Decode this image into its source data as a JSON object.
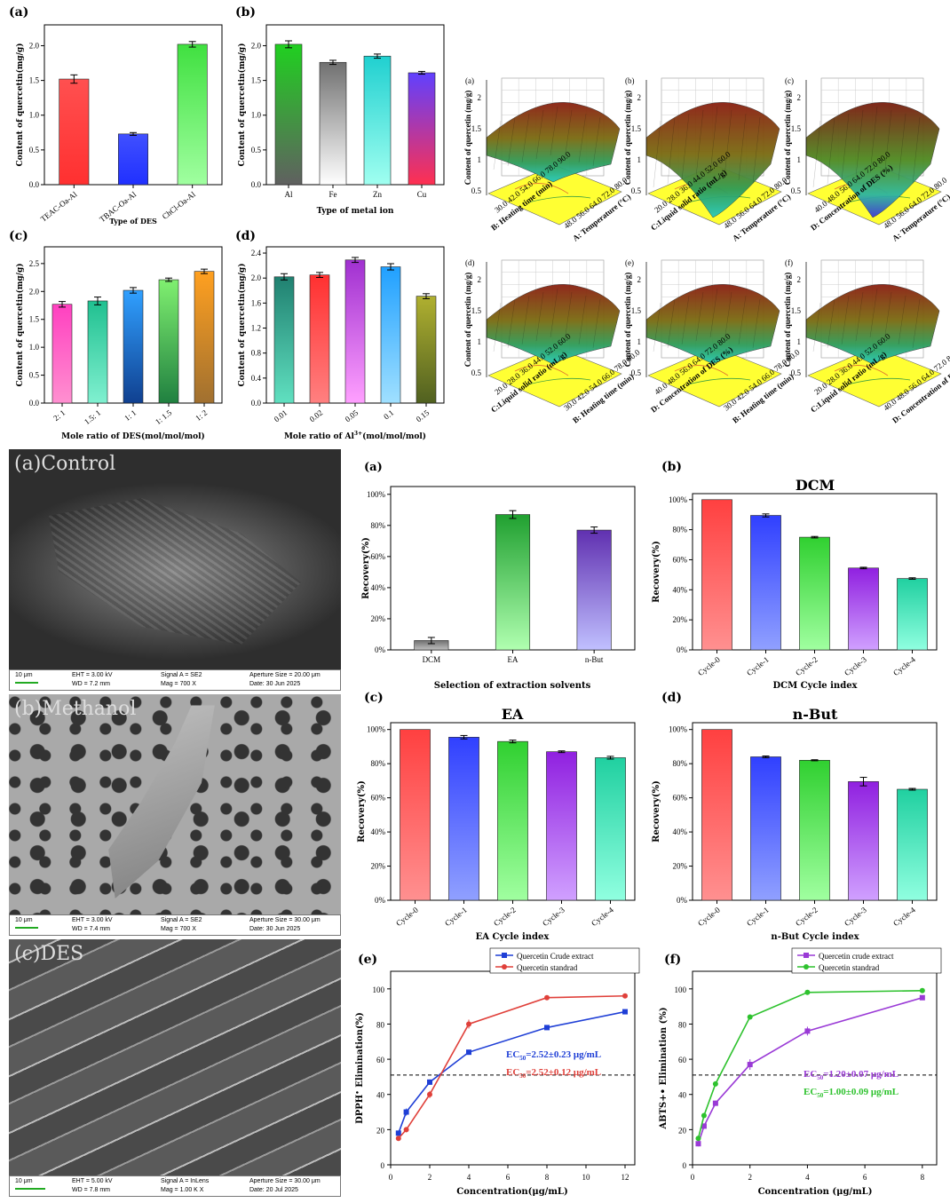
{
  "colors": {
    "red": "#ff3b3b",
    "blue": "#2b3cff",
    "green": "#3ed43e",
    "purple": "#7a2ecc",
    "teal": "#2edfb3",
    "gray": "#8a8a8a",
    "yellow": "#ffff33",
    "line_blue": "#1f3fd6",
    "line_red": "#e0403a",
    "line_purple": "#9a3ad6",
    "line_green": "#2ec22e"
  },
  "panels": {
    "a1": {
      "label": "(a)",
      "ylabel": "Content of quercetin(mg/g)",
      "xlabel": "Type of DES",
      "yticks": [
        "0.0",
        "0.5",
        "1.0",
        "1.5",
        "2.0"
      ]
    },
    "b1": {
      "label": "(b)",
      "ylabel": "Content of quercetin(mg/g)",
      "xlabel": "Type of metal ion",
      "yticks": [
        "0.0",
        "0.5",
        "1.0",
        "1.5",
        "2.0"
      ]
    },
    "c1": {
      "label": "(c)",
      "ylabel": "Content of quercetin(mg/g)",
      "xlabel": "Mole ratio of DES(mol/mol/mol)",
      "yticks": [
        "0.0",
        "0.5",
        "1.0",
        "1.5",
        "2.0",
        "2.5"
      ]
    },
    "d1": {
      "label": "(d)",
      "ylabel": "Content of quercetin(mg/g)",
      "xlabel_main": "Mole ratio of Al",
      "xlabel_sup": "3+",
      "xlabel_tail": "(mol/mol/mol)",
      "yticks": [
        "0.0",
        "0.4",
        "0.8",
        "1.2",
        "1.6",
        "2.0",
        "2.4"
      ]
    },
    "rsm": [
      {
        "label": "(a)",
        "zlabel": "Content of quercetin (mg/g)",
        "xaxis": "B: Heating time (min)",
        "yaxis": "A: Temperature (°C)",
        "xticks": "30.0 42.0 54.0 66.0 78.0 90.0",
        "yticks": "48.0 56.0 64.0 72.0 80.0"
      },
      {
        "label": "(b)",
        "zlabel": "Content of quercetin (mg/g)",
        "xaxis": "C:Liquid solid ratio (mL/g)",
        "yaxis": "A: Temperature (°C)",
        "xticks": "20.0 28.0 36.0 44.0 52.0 60.0",
        "yticks": "48.0 56.0 64.0 72.0 80.0"
      },
      {
        "label": "(c)",
        "zlabel": "Content of quercetin (mg/g)",
        "xaxis": "D: Concentration of DES (%)",
        "yaxis": "A: Temperature (°C)",
        "xticks": "40.0 48.0 56.0 64.0 72.0 80.0",
        "yticks": "48.0 56.0 64.0 72.0 80.0"
      },
      {
        "label": "(d)",
        "zlabel": "Content of quercetin (mg/g)",
        "xaxis": "C:Liquid solid ratio (mL/g)",
        "yaxis": "B: Heating time (min)",
        "xticks": "20.0 28.0 36.0 44.0 52.0 60.0",
        "yticks": "30.0 42.0 54.0 66.0 78.0 90.0"
      },
      {
        "label": "(e)",
        "zlabel": "Content of quercetin (mg/g)",
        "xaxis": "D: Concentration of DES (%)",
        "yaxis": "B: Heating time (min)",
        "xticks": "40.0 48.0 56.0 64.0 72.0 80.0",
        "yticks": "30.0 42.0 54.0 66.0 78.0 90.0"
      },
      {
        "label": "(f)",
        "zlabel": "Content of quercetin (mg/g)",
        "xaxis": "C:Liquid solid ratio (mL/g)",
        "yaxis": "D: Concentration of DES (%)",
        "xticks": "20.0 28.0 36.0 44.0 52.0 60.0",
        "yticks": "40.0 48.0 56.0 64.0 72.0 80.0"
      }
    ],
    "rsm_zticks": [
      "0.5",
      "1",
      "1.5",
      "2"
    ],
    "sem": [
      {
        "caption": "(a)Control",
        "scale": "10 μm",
        "eht": "EHT =  3.00 kV",
        "wd": "WD =  7.2 mm",
        "signal": "Signal A = SE2",
        "mag": "Mag =   700 X",
        "aperture": "Aperture Size = 20.00 μm",
        "date": "Date: 30 Jun 2025"
      },
      {
        "caption": "(b)Methanol",
        "scale": "10 μm",
        "eht": "EHT =  3.00 kV",
        "wd": "WD =  7.4 mm",
        "signal": "Signal A = SE2",
        "mag": "Mag =   700 X",
        "aperture": "Aperture Size = 30.00 μm",
        "date": "Date: 30 Jun 2025"
      },
      {
        "caption": "(c)DES",
        "scale": "10 μm",
        "eht": "EHT =  5.00 kV",
        "wd": "WD =  7.8 mm",
        "signal": "Signal A = InLens",
        "mag": "Mag =  1.00 K X",
        "aperture": "Aperture Size = 30.00 μm",
        "date": "Date: 20 Jul 2025"
      }
    ],
    "ra": {
      "label": "(a)",
      "ylabel": "Recovery(%)",
      "xlabel": "Selection of extraction solvents",
      "yticks": [
        "0%",
        "20%",
        "40%",
        "60%",
        "80%",
        "100%"
      ]
    },
    "rb": {
      "label": "(b)",
      "title": "DCM",
      "ylabel": "Recovery(%)",
      "xlabel": "DCM Cycle index",
      "yticks": [
        "0%",
        "20%",
        "40%",
        "60%",
        "80%",
        "100%"
      ]
    },
    "rc": {
      "label": "(c)",
      "title": "EA",
      "ylabel": "Recovery(%)",
      "xlabel": "EA Cycle index",
      "yticks": [
        "0%",
        "20%",
        "40%",
        "60%",
        "80%",
        "100%"
      ]
    },
    "rd": {
      "label": "(d)",
      "title": "n-But",
      "ylabel": "Recovery(%)",
      "xlabel": "n-But Cycle index",
      "yticks": [
        "0%",
        "20%",
        "40%",
        "60%",
        "80%",
        "100%"
      ]
    },
    "re": {
      "label": "(e)",
      "ylabel_pre": "DPPH",
      "ylabel_post": " Elimination(%)",
      "xlabel": "Concentration(μg/mL)",
      "legend1": "Quercetin Crude extract",
      "legend2": "Quercetin standrad",
      "ann1": "EC",
      "ann1_tail": "=2.52±0.23 μg/mL",
      "ann2": "EC",
      "ann2_tail": "=2.52±0.12 μg/mL",
      "sub": "50",
      "yticks": [
        "0",
        "20",
        "40",
        "60",
        "80",
        "100"
      ],
      "xticks": [
        "0",
        "2",
        "4",
        "6",
        "8",
        "10",
        "12"
      ]
    },
    "rf": {
      "label": "(f)",
      "ylabel": "ABTS+• Elimination (%)",
      "xlabel": "Concentration (μg/mL)",
      "legend1": "Quercetin crude extract",
      "legend2": "Quercetin standrad",
      "ann1": "EC",
      "ann1_tail": "=1.20±0.07 μg/mL",
      "ann2": "EC",
      "ann2_tail": "=1.00±0.09 μg/mL",
      "sub": "50",
      "yticks": [
        "0",
        "20",
        "40",
        "60",
        "80",
        "100"
      ],
      "xticks": [
        "0",
        "2",
        "4",
        "6",
        "8"
      ]
    }
  },
  "chart_data": [
    {
      "type": "bar",
      "categories": [
        "TEAC-Oa-Al",
        "TBAC-Oa-Al",
        "ChCl-Oa-Al"
      ],
      "values": [
        1.52,
        0.73,
        2.02
      ],
      "errors": [
        0.06,
        0.02,
        0.04
      ],
      "xlabel": "Type of DES",
      "ylabel": "Content of quercetin(mg/g)",
      "ylim": [
        0,
        2.3
      ]
    },
    {
      "type": "bar",
      "categories": [
        "Al",
        "Fe",
        "Zn",
        "Cu"
      ],
      "values": [
        2.02,
        1.76,
        1.85,
        1.61
      ],
      "errors": [
        0.05,
        0.03,
        0.03,
        0.02
      ],
      "xlabel": "Type of metal ion",
      "ylabel": "Content of quercetin(mg/g)",
      "ylim": [
        0,
        2.3
      ]
    },
    {
      "type": "bar",
      "categories": [
        "2: 1",
        "1.5: 1",
        "1: 1",
        "1: 1.5",
        "1: 2"
      ],
      "values": [
        1.77,
        1.83,
        2.02,
        2.21,
        2.36
      ],
      "errors": [
        0.05,
        0.07,
        0.05,
        0.03,
        0.04
      ],
      "xlabel": "Mole ratio of DES(mol/mol/mol)",
      "ylabel": "Content of quercetin(mg/g)",
      "ylim": [
        0,
        2.8
      ]
    },
    {
      "type": "bar",
      "categories": [
        "0.01",
        "0.02",
        "0.05",
        "0.1",
        "0.15"
      ],
      "values": [
        2.02,
        2.05,
        2.29,
        2.18,
        1.71
      ],
      "errors": [
        0.05,
        0.04,
        0.04,
        0.05,
        0.04
      ],
      "ylabel": "Content of quercetin(mg/g)",
      "ylim": [
        0,
        2.5
      ]
    },
    {
      "type": "bar",
      "categories": [
        "DCM",
        "EA",
        "n-But"
      ],
      "values": [
        6,
        87,
        77
      ],
      "errors": [
        2,
        2.5,
        2
      ],
      "xlabel": "Selection of extraction solvents",
      "ylabel": "Recovery(%)",
      "ylim": [
        0,
        100
      ]
    },
    {
      "type": "bar",
      "title": "DCM",
      "categories": [
        "Cycle-0",
        "Cycle-1",
        "Cycle-2",
        "Cycle-3",
        "Cycle-4"
      ],
      "values": [
        100,
        89.5,
        75,
        54.5,
        47.5
      ],
      "errors": [
        0,
        1,
        0.5,
        0.5,
        0.5
      ],
      "xlabel": "DCM Cycle index",
      "ylabel": "Recovery(%)",
      "ylim": [
        0,
        100
      ]
    },
    {
      "type": "bar",
      "title": "EA",
      "categories": [
        "Cycle-0",
        "Cycle-1",
        "Cycle-2",
        "Cycle-3",
        "Cycle-4"
      ],
      "values": [
        100,
        95.5,
        93,
        87,
        83.5
      ],
      "errors": [
        0,
        1,
        0.8,
        0.5,
        0.8
      ],
      "xlabel": "EA Cycle index",
      "ylabel": "Recovery(%)",
      "ylim": [
        0,
        100
      ]
    },
    {
      "type": "bar",
      "title": "n-But",
      "categories": [
        "Cycle-0",
        "Cycle-1",
        "Cycle-2",
        "Cycle-3",
        "Cycle-4"
      ],
      "values": [
        100,
        84,
        82,
        69.5,
        65
      ],
      "errors": [
        0,
        0.5,
        0.3,
        2.5,
        0.5
      ],
      "xlabel": "n-But Cycle index",
      "ylabel": "Recovery(%)",
      "ylim": [
        0,
        100
      ]
    },
    {
      "type": "line",
      "xlabel": "Concentration(μg/mL)",
      "xlim": [
        0,
        12.5
      ],
      "ylim": [
        0,
        110
      ],
      "threshold": 51,
      "series": [
        {
          "name": "Quercetin Crude extract",
          "x": [
            0.4,
            0.8,
            2,
            4,
            8,
            12
          ],
          "y": [
            18,
            30,
            47,
            64,
            78,
            87
          ],
          "err": [
            1,
            2,
            1.5,
            1,
            1,
            1
          ]
        },
        {
          "name": "Quercetin standrad",
          "x": [
            0.4,
            0.8,
            2,
            4,
            8,
            12
          ],
          "y": [
            15,
            20,
            40,
            80,
            95,
            96
          ],
          "err": [
            1,
            1.5,
            2,
            2.5,
            1,
            1
          ]
        }
      ]
    },
    {
      "type": "line",
      "xlabel": "Concentration (μg/mL)",
      "xlim": [
        0,
        8.5
      ],
      "ylim": [
        0,
        110
      ],
      "threshold": 51,
      "series": [
        {
          "name": "Quercetin crude extract",
          "x": [
            0.2,
            0.4,
            0.8,
            2,
            4,
            8
          ],
          "y": [
            12,
            22,
            35,
            57,
            76,
            95
          ],
          "err": [
            1.5,
            1.5,
            1.5,
            3,
            2.5,
            1
          ]
        },
        {
          "name": "Quercetin standrad",
          "x": [
            0.2,
            0.4,
            0.8,
            2,
            4,
            8
          ],
          "y": [
            15,
            28,
            46,
            84,
            98,
            99
          ],
          "err": [
            1,
            1,
            1,
            1,
            1,
            1
          ]
        }
      ]
    }
  ]
}
